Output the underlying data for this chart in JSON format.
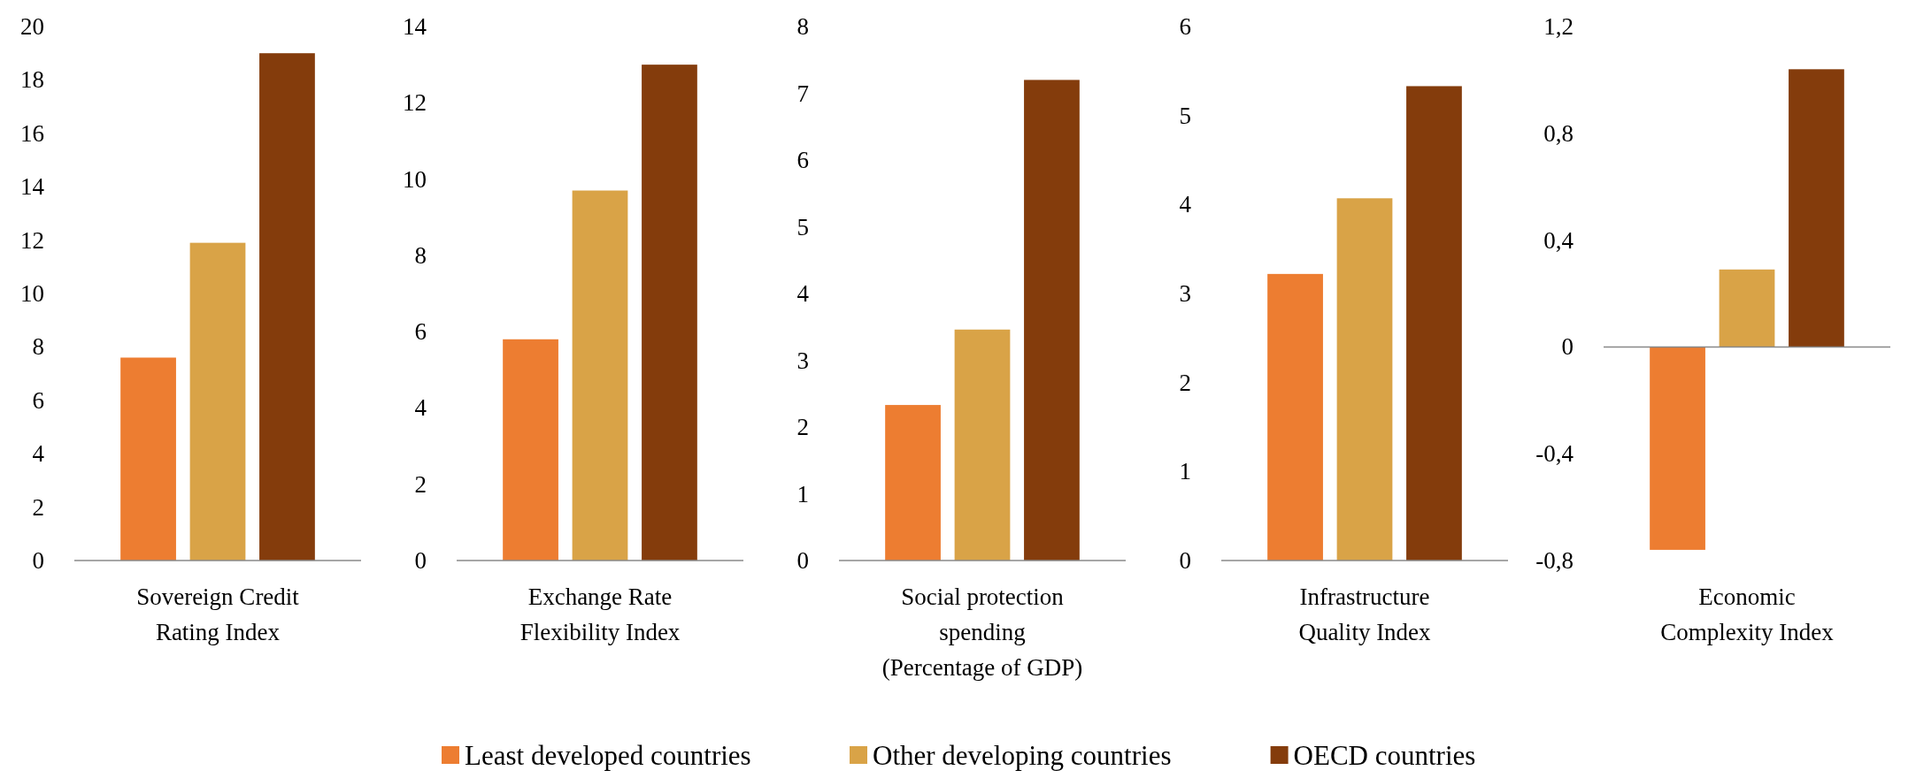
{
  "chart_data": [
    {
      "type": "bar",
      "categories": [
        "Sovereign Credit Rating Index"
      ],
      "ylim": [
        0,
        20
      ],
      "yticks": [
        0,
        2,
        4,
        6,
        8,
        10,
        12,
        14,
        16,
        18,
        20
      ],
      "legend": "bottom",
      "series": [
        {
          "name": "Least developed countries",
          "color": "#ed7d31",
          "values": [
            7.6
          ]
        },
        {
          "name": "Other developing countries",
          "color": "#d9a347",
          "values": [
            11.9
          ]
        },
        {
          "name": "OECD countries",
          "color": "#843c0c",
          "values": [
            19.0
          ]
        }
      ]
    },
    {
      "type": "bar",
      "categories": [
        "Exchange Rate Flexibility Index"
      ],
      "ylim": [
        0,
        14
      ],
      "yticks": [
        0,
        2,
        4,
        6,
        8,
        10,
        12,
        14
      ],
      "series": [
        {
          "color": "#ed7d31",
          "values": [
            5.8
          ]
        },
        {
          "color": "#d9a347",
          "values": [
            9.7
          ]
        },
        {
          "color": "#843c0c",
          "values": [
            13.0
          ]
        }
      ]
    },
    {
      "type": "bar",
      "categories": [
        "Social protection spending (Percentage of GDP)"
      ],
      "ylim": [
        0,
        8
      ],
      "yticks": [
        0,
        1,
        2,
        3,
        4,
        5,
        6,
        7,
        8
      ],
      "series": [
        {
          "color": "#ed7d31",
          "values": [
            2.33
          ]
        },
        {
          "color": "#d9a347",
          "values": [
            3.46
          ]
        },
        {
          "color": "#843c0c",
          "values": [
            7.2
          ]
        }
      ]
    },
    {
      "type": "bar",
      "categories": [
        "Infrastructure Quality Index"
      ],
      "ylim": [
        0,
        6
      ],
      "yticks": [
        0,
        1,
        2,
        3,
        4,
        5,
        6
      ],
      "series": [
        {
          "color": "#ed7d31",
          "values": [
            3.22
          ]
        },
        {
          "color": "#d9a347",
          "values": [
            4.07
          ]
        },
        {
          "color": "#843c0c",
          "values": [
            5.33
          ]
        }
      ]
    },
    {
      "type": "bar",
      "categories": [
        "Economic Complexity Index"
      ],
      "ylim": [
        -0.8,
        1.2
      ],
      "yticks": [
        {
          "value": -0.8,
          "label": "-0,8"
        },
        {
          "value": -0.4,
          "label": "-0,4"
        },
        {
          "value": 0,
          "label": "0"
        },
        {
          "value": 0.4,
          "label": "0,4"
        },
        {
          "value": 0.8,
          "label": "0,8"
        },
        {
          "value": 1.2,
          "label": "1,2"
        }
      ],
      "series": [
        {
          "color": "#ed7d31",
          "values": [
            -0.76
          ]
        },
        {
          "color": "#d9a347",
          "values": [
            0.29
          ]
        },
        {
          "color": "#843c0c",
          "values": [
            1.04
          ]
        }
      ]
    }
  ]
}
